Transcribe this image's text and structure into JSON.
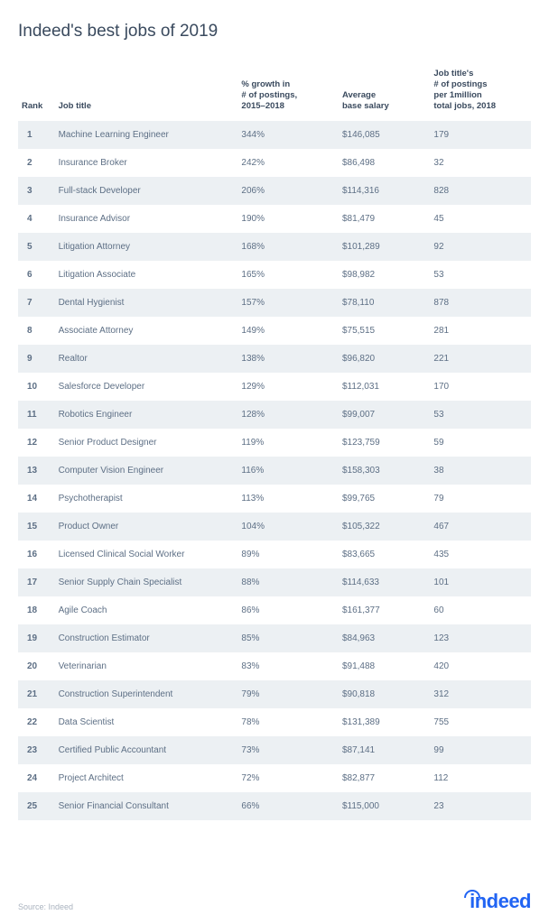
{
  "title": "Indeed's best jobs of 2019",
  "columns": {
    "rank": "Rank",
    "job_title": "Job title",
    "growth": "% growth in\n# of postings,\n2015–2018",
    "salary": "Average\nbase salary",
    "postings": "Job title's\n# of postings\nper 1million\ntotal jobs, 2018"
  },
  "rows": [
    {
      "rank": "1",
      "title": "Machine Learning Engineer",
      "growth": "344%",
      "salary": "$146,085",
      "postings": "179"
    },
    {
      "rank": "2",
      "title": "Insurance Broker",
      "growth": "242%",
      "salary": "$86,498",
      "postings": "32"
    },
    {
      "rank": "3",
      "title": "Full-stack Developer",
      "growth": "206%",
      "salary": "$114,316",
      "postings": "828"
    },
    {
      "rank": "4",
      "title": "Insurance Advisor",
      "growth": "190%",
      "salary": "$81,479",
      "postings": "45"
    },
    {
      "rank": "5",
      "title": "Litigation Attorney",
      "growth": "168%",
      "salary": "$101,289",
      "postings": "92"
    },
    {
      "rank": "6",
      "title": "Litigation Associate",
      "growth": "165%",
      "salary": "$98,982",
      "postings": "53"
    },
    {
      "rank": "7",
      "title": "Dental Hygienist",
      "growth": "157%",
      "salary": "$78,110",
      "postings": "878"
    },
    {
      "rank": "8",
      "title": "Associate Attorney",
      "growth": "149%",
      "salary": "$75,515",
      "postings": "281"
    },
    {
      "rank": "9",
      "title": "Realtor",
      "growth": "138%",
      "salary": "$96,820",
      "postings": "221"
    },
    {
      "rank": "10",
      "title": "Salesforce Developer",
      "growth": "129%",
      "salary": "$112,031",
      "postings": "170"
    },
    {
      "rank": "11",
      "title": "Robotics Engineer",
      "growth": "128%",
      "salary": "$99,007",
      "postings": "53"
    },
    {
      "rank": "12",
      "title": "Senior Product Designer",
      "growth": "119%",
      "salary": "$123,759",
      "postings": "59"
    },
    {
      "rank": "13",
      "title": "Computer Vision Engineer",
      "growth": "116%",
      "salary": "$158,303",
      "postings": "38"
    },
    {
      "rank": "14",
      "title": "Psychotherapist",
      "growth": "113%",
      "salary": "$99,765",
      "postings": "79"
    },
    {
      "rank": "15",
      "title": "Product Owner",
      "growth": "104%",
      "salary": "$105,322",
      "postings": "467"
    },
    {
      "rank": "16",
      "title": "Licensed Clinical Social Worker",
      "growth": "89%",
      "salary": "$83,665",
      "postings": "435"
    },
    {
      "rank": "17",
      "title": "Senior Supply Chain Specialist",
      "growth": "88%",
      "salary": "$114,633",
      "postings": "101"
    },
    {
      "rank": "18",
      "title": "Agile Coach",
      "growth": "86%",
      "salary": "$161,377",
      "postings": "60"
    },
    {
      "rank": "19",
      "title": "Construction Estimator",
      "growth": "85%",
      "salary": "$84,963",
      "postings": "123"
    },
    {
      "rank": "20",
      "title": "Veterinarian",
      "growth": "83%",
      "salary": "$91,488",
      "postings": "420"
    },
    {
      "rank": "21",
      "title": "Construction Superintendent",
      "growth": "79%",
      "salary": "$90,818",
      "postings": "312"
    },
    {
      "rank": "22",
      "title": "Data Scientist",
      "growth": "78%",
      "salary": "$131,389",
      "postings": "755"
    },
    {
      "rank": "23",
      "title": "Certified Public Accountant",
      "growth": "73%",
      "salary": "$87,141",
      "postings": "99"
    },
    {
      "rank": "24",
      "title": "Project Architect",
      "growth": "72%",
      "salary": "$82,877",
      "postings": "112"
    },
    {
      "rank": "25",
      "title": "Senior Financial Consultant",
      "growth": "66%",
      "salary": "$115,000",
      "postings": "23"
    }
  ],
  "source": "Source: Indeed",
  "logo_text_1": "i",
  "logo_text_2": "ndeed",
  "styling": {
    "row_odd_bg": "#ecf0f3",
    "row_even_bg": "#ffffff",
    "text_color": "#5d6f85",
    "title_color": "#3a4a5e",
    "logo_color": "#2164f3",
    "source_color": "#aab3bf",
    "title_fontsize": 19,
    "body_fontsize": 10,
    "header_fontsize": 9.5
  }
}
